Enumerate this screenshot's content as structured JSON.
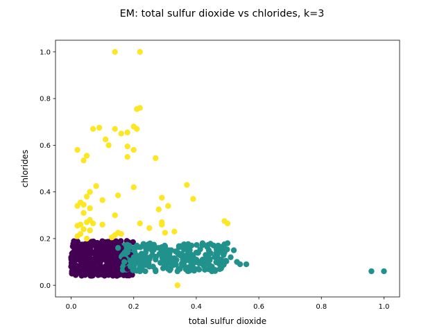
{
  "chart_data": {
    "type": "scatter",
    "title": "EM: total sulfur dioxide vs chlorides, k=3",
    "xlabel": "total sulfur dioxide",
    "ylabel": "chlorides",
    "xlim": [
      -0.05,
      1.05
    ],
    "ylim": [
      -0.05,
      1.05
    ],
    "xticks": [
      0.0,
      0.2,
      0.4,
      0.6,
      0.8,
      1.0
    ],
    "xtick_labels": [
      "0.0",
      "0.2",
      "0.4",
      "0.6",
      "0.8",
      "1.0"
    ],
    "yticks": [
      0.0,
      0.2,
      0.4,
      0.6,
      0.8,
      1.0
    ],
    "ytick_labels": [
      "0.0",
      "0.2",
      "0.4",
      "0.6",
      "0.8",
      "1.0"
    ],
    "grid": false,
    "legend": "none",
    "series": [
      {
        "color": "#440154",
        "cluster": {
          "x_range": [
            0.0,
            0.2
          ],
          "y_range": [
            0.04,
            0.19
          ],
          "count": 420,
          "description_points": []
        },
        "points": [
          [
            0.0,
            0.08
          ],
          [
            0.0,
            0.12
          ],
          [
            0.01,
            0.16
          ],
          [
            0.01,
            0.1
          ],
          [
            0.02,
            0.06
          ],
          [
            0.02,
            0.18
          ],
          [
            0.03,
            0.14
          ],
          [
            0.04,
            0.05
          ],
          [
            0.05,
            0.11
          ],
          [
            0.06,
            0.17
          ],
          [
            0.07,
            0.09
          ],
          [
            0.08,
            0.15
          ],
          [
            0.09,
            0.07
          ],
          [
            0.1,
            0.12
          ],
          [
            0.11,
            0.18
          ],
          [
            0.12,
            0.1
          ],
          [
            0.13,
            0.06
          ],
          [
            0.14,
            0.14
          ],
          [
            0.15,
            0.09
          ],
          [
            0.16,
            0.16
          ],
          [
            0.17,
            0.11
          ],
          [
            0.18,
            0.07
          ],
          [
            0.19,
            0.13
          ]
        ]
      },
      {
        "color": "#21918c",
        "points": [
          [
            0.15,
            0.16
          ],
          [
            0.17,
            0.1
          ],
          [
            0.18,
            0.14
          ],
          [
            0.19,
            0.08
          ],
          [
            0.2,
            0.12
          ],
          [
            0.21,
            0.17
          ],
          [
            0.22,
            0.06
          ],
          [
            0.23,
            0.1
          ],
          [
            0.24,
            0.15
          ],
          [
            0.25,
            0.08
          ],
          [
            0.26,
            0.13
          ],
          [
            0.27,
            0.06
          ],
          [
            0.28,
            0.16
          ],
          [
            0.29,
            0.1
          ],
          [
            0.3,
            0.12
          ],
          [
            0.31,
            0.07
          ],
          [
            0.32,
            0.15
          ],
          [
            0.33,
            0.11
          ],
          [
            0.34,
            0.06
          ],
          [
            0.35,
            0.13
          ],
          [
            0.36,
            0.09
          ],
          [
            0.37,
            0.16
          ],
          [
            0.38,
            0.12
          ],
          [
            0.39,
            0.07
          ],
          [
            0.4,
            0.14
          ],
          [
            0.41,
            0.1
          ],
          [
            0.42,
            0.18
          ],
          [
            0.43,
            0.13
          ],
          [
            0.44,
            0.15
          ],
          [
            0.45,
            0.08
          ],
          [
            0.46,
            0.12
          ],
          [
            0.47,
            0.17
          ],
          [
            0.48,
            0.11
          ],
          [
            0.49,
            0.14
          ],
          [
            0.5,
            0.18
          ],
          [
            0.51,
            0.12
          ],
          [
            0.52,
            0.15
          ],
          [
            0.53,
            0.1
          ],
          [
            0.54,
            0.09
          ],
          [
            0.56,
            0.09
          ],
          [
            0.96,
            0.06
          ],
          [
            1.0,
            0.06
          ],
          [
            0.45,
            0.06
          ],
          [
            0.33,
            0.1
          ],
          [
            0.27,
            0.11
          ],
          [
            0.31,
            0.15
          ],
          [
            0.24,
            0.12
          ],
          [
            0.22,
            0.09
          ],
          [
            0.38,
            0.08
          ],
          [
            0.42,
            0.11
          ]
        ]
      },
      {
        "color": "#fde725",
        "points": [
          [
            0.14,
            1.0
          ],
          [
            0.22,
            1.0
          ],
          [
            0.22,
            0.76
          ],
          [
            0.21,
            0.755
          ],
          [
            0.07,
            0.67
          ],
          [
            0.09,
            0.675
          ],
          [
            0.14,
            0.67
          ],
          [
            0.2,
            0.68
          ],
          [
            0.21,
            0.67
          ],
          [
            0.16,
            0.65
          ],
          [
            0.18,
            0.655
          ],
          [
            0.11,
            0.625
          ],
          [
            0.12,
            0.6
          ],
          [
            0.18,
            0.595
          ],
          [
            0.2,
            0.58
          ],
          [
            0.02,
            0.58
          ],
          [
            0.05,
            0.555
          ],
          [
            0.04,
            0.535
          ],
          [
            0.18,
            0.55
          ],
          [
            0.27,
            0.545
          ],
          [
            0.08,
            0.425
          ],
          [
            0.2,
            0.42
          ],
          [
            0.37,
            0.43
          ],
          [
            0.06,
            0.4
          ],
          [
            0.05,
            0.38
          ],
          [
            0.15,
            0.385
          ],
          [
            0.1,
            0.365
          ],
          [
            0.29,
            0.375
          ],
          [
            0.39,
            0.37
          ],
          [
            0.03,
            0.355
          ],
          [
            0.04,
            0.345
          ],
          [
            0.02,
            0.34
          ],
          [
            0.06,
            0.33
          ],
          [
            0.31,
            0.34
          ],
          [
            0.28,
            0.325
          ],
          [
            0.04,
            0.31
          ],
          [
            0.14,
            0.3
          ],
          [
            0.06,
            0.28
          ],
          [
            0.05,
            0.27
          ],
          [
            0.07,
            0.265
          ],
          [
            0.03,
            0.26
          ],
          [
            0.02,
            0.255
          ],
          [
            0.1,
            0.26
          ],
          [
            0.22,
            0.265
          ],
          [
            0.29,
            0.27
          ],
          [
            0.29,
            0.26
          ],
          [
            0.49,
            0.275
          ],
          [
            0.5,
            0.265
          ],
          [
            0.04,
            0.24
          ],
          [
            0.06,
            0.235
          ],
          [
            0.03,
            0.22
          ],
          [
            0.15,
            0.225
          ],
          [
            0.16,
            0.22
          ],
          [
            0.14,
            0.215
          ],
          [
            0.33,
            0.23
          ],
          [
            0.02,
            0.21
          ],
          [
            0.05,
            0.2
          ],
          [
            0.13,
            0.205
          ],
          [
            0.25,
            0.245
          ],
          [
            0.3,
            0.225
          ],
          [
            0.34,
            0.0
          ]
        ]
      }
    ]
  }
}
